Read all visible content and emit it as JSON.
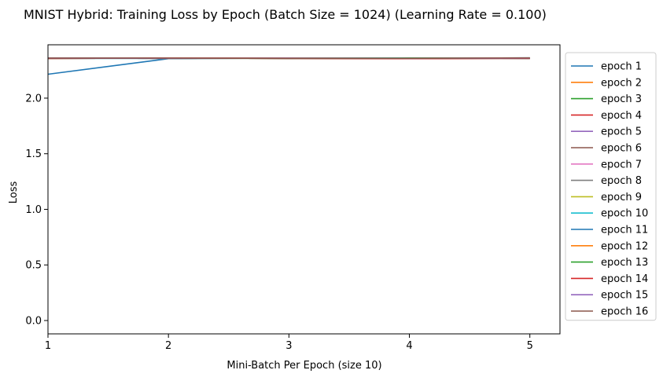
{
  "chart_data": {
    "type": "line",
    "title": "MNIST Hybrid: Training Loss by Epoch (Batch Size = 1024) (Learning Rate = 0.100)",
    "xlabel": "Mini-Batch Per Epoch (size 10)",
    "ylabel": "Loss",
    "xlim": [
      1.0,
      5.25
    ],
    "ylim": [
      -0.12,
      2.48
    ],
    "xticks": [
      1,
      2,
      3,
      4,
      5
    ],
    "xtick_labels": [
      "1",
      "2",
      "3",
      "4",
      "5"
    ],
    "yticks": [
      0.0,
      0.5,
      1.0,
      1.5,
      2.0
    ],
    "ytick_labels": [
      "0.0",
      "0.5",
      "1.0",
      "1.5",
      "2.0"
    ],
    "grid": false,
    "legend_position": "outside-right",
    "x": [
      1,
      2,
      3,
      4,
      5
    ],
    "series": [
      {
        "name": "epoch 1",
        "color": "#1f77b4",
        "values": [
          2.215,
          2.355,
          2.36,
          2.358,
          2.362
        ]
      },
      {
        "name": "epoch 2",
        "color": "#ff7f0e",
        "values": [
          2.358,
          2.36,
          2.358,
          2.356,
          2.36
        ]
      },
      {
        "name": "epoch 3",
        "color": "#2ca02c",
        "values": [
          2.36,
          2.358,
          2.36,
          2.358,
          2.36
        ]
      },
      {
        "name": "epoch 4",
        "color": "#d62728",
        "values": [
          2.358,
          2.36,
          2.358,
          2.356,
          2.358
        ]
      },
      {
        "name": "epoch 5",
        "color": "#9467bd",
        "values": [
          2.36,
          2.358,
          2.36,
          2.36,
          2.358
        ]
      },
      {
        "name": "epoch 6",
        "color": "#8c564b",
        "values": [
          2.358,
          2.36,
          2.358,
          2.358,
          2.36
        ]
      },
      {
        "name": "epoch 7",
        "color": "#e377c2",
        "values": [
          2.36,
          2.358,
          2.358,
          2.36,
          2.358
        ]
      },
      {
        "name": "epoch 8",
        "color": "#7f7f7f",
        "values": [
          2.358,
          2.358,
          2.36,
          2.358,
          2.36
        ]
      },
      {
        "name": "epoch 9",
        "color": "#bcbd22",
        "values": [
          2.36,
          2.36,
          2.358,
          2.358,
          2.358
        ]
      },
      {
        "name": "epoch 10",
        "color": "#17becf",
        "values": [
          2.358,
          2.358,
          2.36,
          2.36,
          2.36
        ]
      },
      {
        "name": "epoch 11",
        "color": "#1f77b4",
        "values": [
          2.36,
          2.36,
          2.358,
          2.358,
          2.358
        ]
      },
      {
        "name": "epoch 12",
        "color": "#ff7f0e",
        "values": [
          2.358,
          2.36,
          2.36,
          2.358,
          2.36
        ]
      },
      {
        "name": "epoch 13",
        "color": "#2ca02c",
        "values": [
          2.36,
          2.358,
          2.358,
          2.36,
          2.358
        ]
      },
      {
        "name": "epoch 14",
        "color": "#d62728",
        "values": [
          2.358,
          2.36,
          2.358,
          2.355,
          2.358
        ]
      },
      {
        "name": "epoch 15",
        "color": "#9467bd",
        "values": [
          2.36,
          2.358,
          2.36,
          2.358,
          2.36
        ]
      },
      {
        "name": "epoch 16",
        "color": "#8c564b",
        "values": [
          2.36,
          2.36,
          2.358,
          2.358,
          2.362
        ]
      }
    ]
  }
}
